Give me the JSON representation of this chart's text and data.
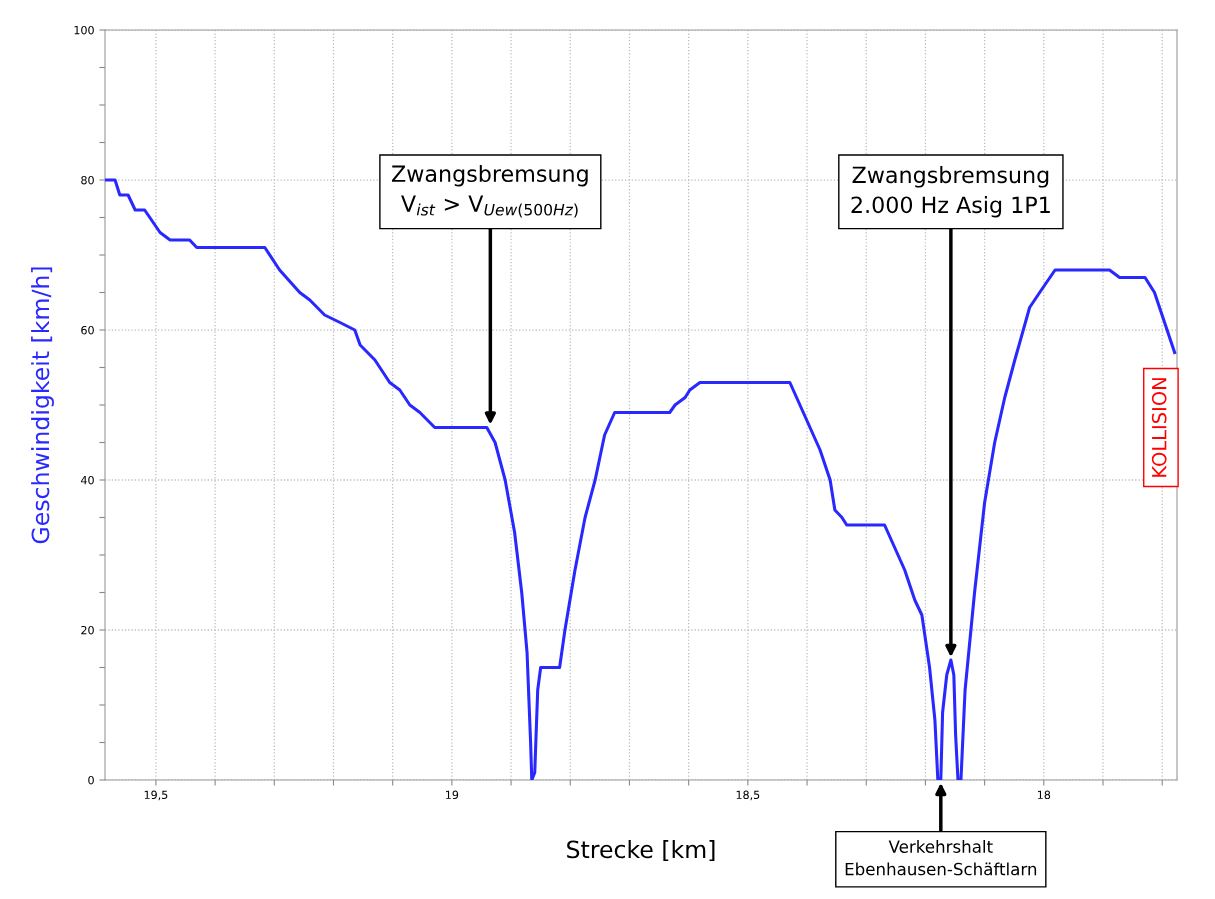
{
  "chart_data": {
    "type": "line",
    "xlabel": "Strecke [km]",
    "ylabel": "Geschwindigkeit [km/h]",
    "x": [
      19.586,
      19.569,
      19.561,
      19.547,
      19.535,
      19.519,
      19.493,
      19.476,
      19.443,
      19.431,
      19.316,
      19.291,
      19.257,
      19.24,
      19.215,
      19.189,
      19.164,
      19.155,
      19.13,
      19.105,
      19.088,
      19.071,
      19.054,
      19.029,
      18.941,
      18.927,
      18.91,
      18.894,
      18.882,
      18.873,
      18.867,
      18.865,
      18.86,
      18.855,
      18.85,
      18.818,
      18.809,
      18.792,
      18.775,
      18.758,
      18.75,
      18.742,
      18.725,
      18.632,
      18.623,
      18.606,
      18.598,
      18.581,
      18.429,
      18.412,
      18.395,
      18.378,
      18.361,
      18.353,
      18.341,
      18.333,
      18.269,
      18.252,
      18.235,
      18.218,
      18.206,
      18.193,
      18.184,
      18.179,
      18.174,
      18.171,
      18.164,
      18.157,
      18.152,
      18.149,
      18.145,
      18.14,
      18.133,
      18.117,
      18.1,
      18.083,
      18.066,
      18.049,
      18.024,
      18.007,
      17.981,
      17.889,
      17.872,
      17.829,
      17.813,
      17.796,
      17.779
    ],
    "series": [
      {
        "color": "#2828ff",
        "values": [
          80,
          80,
          78,
          78,
          76,
          76,
          73,
          72,
          72,
          71,
          71,
          68,
          65,
          64,
          62,
          61,
          60,
          58,
          56,
          53,
          52,
          50,
          49,
          47,
          47,
          45,
          40,
          33,
          25,
          17,
          5,
          0,
          1,
          12,
          15,
          15,
          20,
          28,
          35,
          40,
          43,
          46,
          49,
          49,
          50,
          51,
          52,
          53,
          53,
          50,
          47,
          44,
          40,
          36,
          35,
          34,
          34,
          31,
          28,
          24,
          22,
          15,
          8,
          0,
          0,
          9,
          14,
          16,
          14,
          6,
          0,
          0,
          12,
          25,
          37,
          45,
          51,
          56,
          63,
          65,
          68,
          68,
          67,
          67,
          65,
          61,
          57
        ]
      }
    ],
    "xlim": [
      19.586,
      17.775
    ],
    "ylim": [
      0,
      100
    ],
    "xticks": [
      {
        "value": 19.5,
        "label": "19,5"
      },
      {
        "value": 19.4,
        "label": null
      },
      {
        "value": 19.3,
        "label": null
      },
      {
        "value": 19.2,
        "label": null
      },
      {
        "value": 19.1,
        "label": null
      },
      {
        "value": 19,
        "label": "19"
      },
      {
        "value": 18.9,
        "label": null
      },
      {
        "value": 18.8,
        "label": null
      },
      {
        "value": 18.7,
        "label": null
      },
      {
        "value": 18.6,
        "label": null
      },
      {
        "value": 18.5,
        "label": "18,5"
      },
      {
        "value": 18.4,
        "label": null
      },
      {
        "value": 18.3,
        "label": null
      },
      {
        "value": 18.2,
        "label": null
      },
      {
        "value": 18.1,
        "label": null
      },
      {
        "value": 18,
        "label": "18"
      },
      {
        "value": 17.9,
        "label": null
      },
      {
        "value": 17.8,
        "label": null
      }
    ],
    "yticks": [
      0,
      {
        "value": 5,
        "label": null
      },
      {
        "value": 10,
        "label": null
      },
      {
        "value": 15,
        "label": null
      },
      20,
      {
        "value": 25,
        "label": null
      },
      {
        "value": 30,
        "label": null
      },
      {
        "value": 35,
        "label": null
      },
      40,
      {
        "value": 45,
        "label": null
      },
      {
        "value": 50,
        "label": null
      },
      {
        "value": 55,
        "label": null
      },
      60,
      {
        "value": 65,
        "label": null
      },
      {
        "value": 70,
        "label": null
      },
      {
        "value": 75,
        "label": null
      },
      80,
      {
        "value": 85,
        "label": null
      },
      {
        "value": 90,
        "label": null
      },
      {
        "value": 95,
        "label": null
      },
      100
    ],
    "grid": true,
    "line_style": "solid",
    "marker": "none",
    "annotations": [
      {
        "text": "Zwangsbremsung\nV$_{ist}$ > V$_{Uew(500Hz)}$",
        "x": 18.935,
        "y": 47
      },
      {
        "text": "Zwangsbremsung\n2.000 Hz Asig 1P1",
        "x": 18.157,
        "y": 16
      },
      {
        "text": "Verkehrshalt\nEbenhausen-Schäftlarn",
        "x": 18.174,
        "y": 0
      },
      "KOLLISION"
    ]
  }
}
